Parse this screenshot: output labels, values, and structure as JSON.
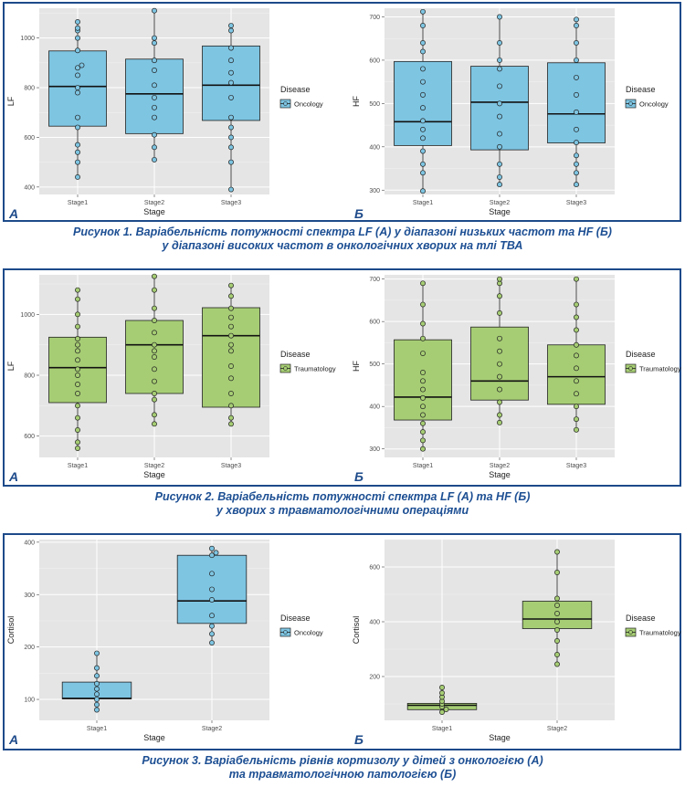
{
  "colors": {
    "oncology": "#7ec5e2",
    "traumatology": "#a6cd74",
    "panel_bg": "#e5e5e5",
    "frame": "#1d4a8a",
    "caption": "#1d4f93"
  },
  "captions": [
    {
      "line1": "Рисунок 1. Варіабельність потужності спектра LF (А) у діапазоні низьких частот та HF (Б)",
      "line2": "у діапазоні високих частот в онкологічних хворих на тлі ТВА"
    },
    {
      "line1": "Рисунок 2. Варіабельність потужності спектра LF (А) та HF (Б)",
      "line2": "у хворих з травматологічними операціями"
    },
    {
      "line1": "Рисунок 3. Варіабельність рівнів кортизолу у дітей з онкологією (А)",
      "line2": "та травматологічною патологією (Б)"
    }
  ],
  "chart_data": [
    {
      "id": "1A",
      "panel_letter": "А",
      "type": "box",
      "xlabel": "Stage",
      "ylabel": "LF",
      "categories": [
        "Stage1",
        "Stage2",
        "Stage3"
      ],
      "ylim": [
        370,
        1120
      ],
      "yticks": [
        400,
        600,
        800,
        1000
      ],
      "legend_title": "Disease",
      "legend_label": "Oncology",
      "fill": "oncology",
      "boxes": [
        {
          "min": 440,
          "q1": 645,
          "median": 805,
          "q3": 948,
          "max": 1065
        },
        {
          "min": 510,
          "q1": 615,
          "median": 775,
          "q3": 915,
          "max": 1110
        },
        {
          "min": 390,
          "q1": 668,
          "median": 810,
          "q3": 968,
          "max": 1050
        }
      ],
      "points": [
        [
          440,
          500,
          540,
          570,
          640,
          680,
          780,
          800,
          850,
          880,
          890,
          950,
          1000,
          1030,
          1040,
          1065
        ],
        [
          510,
          560,
          610,
          680,
          720,
          760,
          810,
          870,
          910,
          980,
          1000,
          1110
        ],
        [
          390,
          500,
          560,
          600,
          640,
          680,
          760,
          820,
          860,
          910,
          960,
          1030,
          1050
        ]
      ]
    },
    {
      "id": "1B",
      "panel_letter": "Б",
      "type": "box",
      "xlabel": "Stage",
      "ylabel": "HF",
      "categories": [
        "Stage1",
        "Stage2",
        "Stage3"
      ],
      "ylim": [
        290,
        720
      ],
      "yticks": [
        300,
        400,
        500,
        600,
        700
      ],
      "legend_title": "Disease",
      "legend_label": "Oncology",
      "fill": "oncology",
      "boxes": [
        {
          "min": 298,
          "q1": 403,
          "median": 458,
          "q3": 597,
          "max": 712
        },
        {
          "min": 313,
          "q1": 393,
          "median": 503,
          "q3": 586,
          "max": 700
        },
        {
          "min": 313,
          "q1": 409,
          "median": 476,
          "q3": 594,
          "max": 694
        }
      ],
      "points": [
        [
          298,
          340,
          360,
          390,
          420,
          440,
          460,
          490,
          520,
          550,
          580,
          620,
          640,
          680,
          712
        ],
        [
          313,
          330,
          360,
          400,
          430,
          470,
          500,
          540,
          580,
          600,
          640,
          700
        ],
        [
          313,
          340,
          360,
          380,
          410,
          440,
          480,
          520,
          560,
          600,
          640,
          680,
          694
        ]
      ]
    },
    {
      "id": "2A",
      "panel_letter": "А",
      "type": "box",
      "xlabel": "Stage",
      "ylabel": "LF",
      "categories": [
        "Stage1",
        "Stage2",
        "Stage3"
      ],
      "ylim": [
        530,
        1130
      ],
      "yticks": [
        600,
        800,
        1000
      ],
      "legend_title": "Disease",
      "legend_label": "Traumatology",
      "fill": "traumatology",
      "boxes": [
        {
          "min": 560,
          "q1": 710,
          "median": 825,
          "q3": 925,
          "max": 1080
        },
        {
          "min": 640,
          "q1": 740,
          "median": 900,
          "q3": 980,
          "max": 1125
        },
        {
          "min": 640,
          "q1": 695,
          "median": 930,
          "q3": 1022,
          "max": 1095
        }
      ],
      "points": [
        [
          560,
          580,
          620,
          660,
          700,
          740,
          770,
          800,
          820,
          850,
          880,
          900,
          920,
          960,
          1000,
          1050,
          1080
        ],
        [
          640,
          670,
          720,
          740,
          780,
          820,
          860,
          880,
          900,
          940,
          980,
          1020,
          1080,
          1125
        ],
        [
          640,
          660,
          700,
          740,
          790,
          830,
          880,
          900,
          930,
          960,
          990,
          1020,
          1060,
          1095
        ]
      ]
    },
    {
      "id": "2B",
      "panel_letter": "Б",
      "type": "box",
      "xlabel": "Stage",
      "ylabel": "HF",
      "categories": [
        "Stage1",
        "Stage2",
        "Stage3"
      ],
      "ylim": [
        280,
        710
      ],
      "yticks": [
        300,
        400,
        500,
        600,
        700
      ],
      "legend_title": "Disease",
      "legend_label": "Traumatology",
      "fill": "traumatology",
      "boxes": [
        {
          "min": 300,
          "q1": 368,
          "median": 422,
          "q3": 557,
          "max": 690
        },
        {
          "min": 362,
          "q1": 415,
          "median": 460,
          "q3": 587,
          "max": 700
        },
        {
          "min": 345,
          "q1": 405,
          "median": 470,
          "q3": 545,
          "max": 700
        }
      ],
      "points": [
        [
          300,
          320,
          340,
          360,
          380,
          400,
          420,
          440,
          460,
          480,
          525,
          560,
          595,
          640,
          690
        ],
        [
          362,
          380,
          410,
          440,
          470,
          500,
          530,
          560,
          620,
          660,
          690,
          700
        ],
        [
          345,
          370,
          400,
          430,
          460,
          490,
          520,
          545,
          580,
          610,
          640,
          700
        ]
      ]
    },
    {
      "id": "3A",
      "panel_letter": "А",
      "type": "box",
      "xlabel": "Stage",
      "ylabel": "Cortisol",
      "categories": [
        "Stage1",
        "Stage2"
      ],
      "ylim": [
        60,
        405
      ],
      "yticks": [
        100,
        200,
        300,
        400
      ],
      "legend_title": "Disease",
      "legend_label": "Oncology",
      "fill": "oncology",
      "boxes": [
        {
          "min": 80,
          "q1": 101,
          "median": 102,
          "q3": 133,
          "max": 188
        },
        {
          "min": 208,
          "q1": 245,
          "median": 288,
          "q3": 375,
          "max": 388
        }
      ],
      "points": [
        [
          80,
          90,
          100,
          110,
          120,
          130,
          145,
          160,
          188
        ],
        [
          208,
          225,
          240,
          260,
          290,
          310,
          340,
          375,
          380,
          388
        ]
      ]
    },
    {
      "id": "3B",
      "panel_letter": "Б",
      "type": "box",
      "xlabel": "Stage",
      "ylabel": "Cortisol",
      "categories": [
        "Stage1",
        "Stage2"
      ],
      "ylim": [
        40,
        700
      ],
      "yticks": [
        200,
        400,
        600
      ],
      "legend_title": "Disease",
      "legend_label": "Traumatology",
      "fill": "traumatology",
      "boxes": [
        {
          "min": 70,
          "q1": 79,
          "median": 95,
          "q3": 102,
          "max": 160
        },
        {
          "min": 245,
          "q1": 375,
          "median": 410,
          "q3": 475,
          "max": 655
        }
      ],
      "points": [
        [
          70,
          80,
          90,
          100,
          110,
          125,
          140,
          160
        ],
        [
          245,
          280,
          330,
          370,
          400,
          430,
          460,
          485,
          580,
          655
        ]
      ]
    }
  ]
}
